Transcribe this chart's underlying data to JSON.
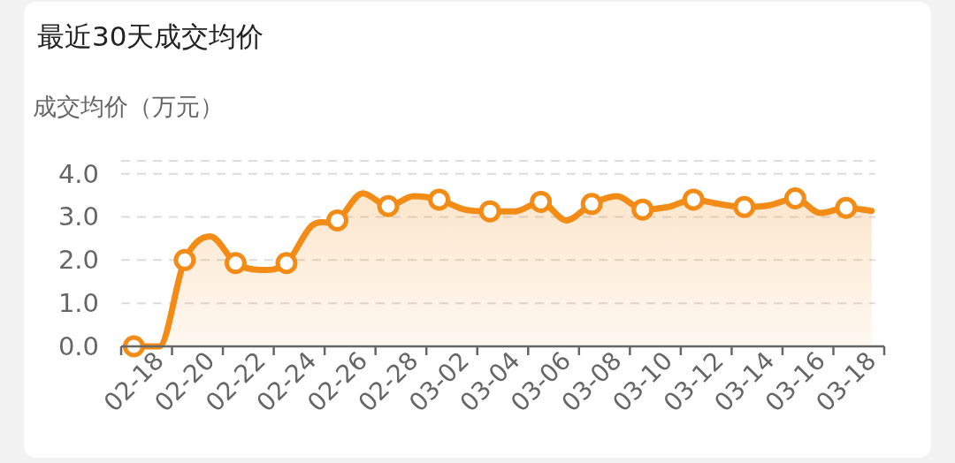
{
  "chart_data": {
    "type": "area",
    "title": "最近30天成交均价",
    "ylabel": "成交均价（万元）",
    "categories": [
      "02-18",
      null,
      "02-20",
      null,
      "02-22",
      null,
      "02-24",
      null,
      "02-26",
      null,
      "02-28",
      null,
      "03-02",
      null,
      "03-04",
      null,
      "03-06",
      null,
      "03-08",
      null,
      "03-10",
      null,
      "03-12",
      null,
      "03-14",
      null,
      "03-16",
      null,
      "03-18",
      null
    ],
    "series": [
      {
        "color": "#f28c16",
        "values": [
          0.0,
          0.0,
          2.0,
          2.55,
          1.93,
          1.77,
          1.93,
          2.8,
          2.92,
          3.55,
          3.25,
          3.48,
          3.4,
          3.17,
          3.13,
          3.13,
          3.35,
          2.92,
          3.3,
          3.48,
          3.17,
          3.23,
          3.4,
          3.3,
          3.23,
          3.27,
          3.43,
          3.09,
          3.21,
          3.14
        ]
      }
    ],
    "ylim": [
      0,
      4.3
    ],
    "yticks": [
      {
        "value": 0,
        "label": "0.0"
      },
      {
        "value": 1,
        "label": "1.0"
      },
      {
        "value": 2,
        "label": "2.0"
      },
      {
        "value": 3,
        "label": "3.0"
      },
      {
        "value": 4,
        "label": "4.0"
      },
      {
        "value": 4.3,
        "label": null
      }
    ],
    "grid": "y",
    "marker": "circle",
    "line_style": "solid"
  }
}
